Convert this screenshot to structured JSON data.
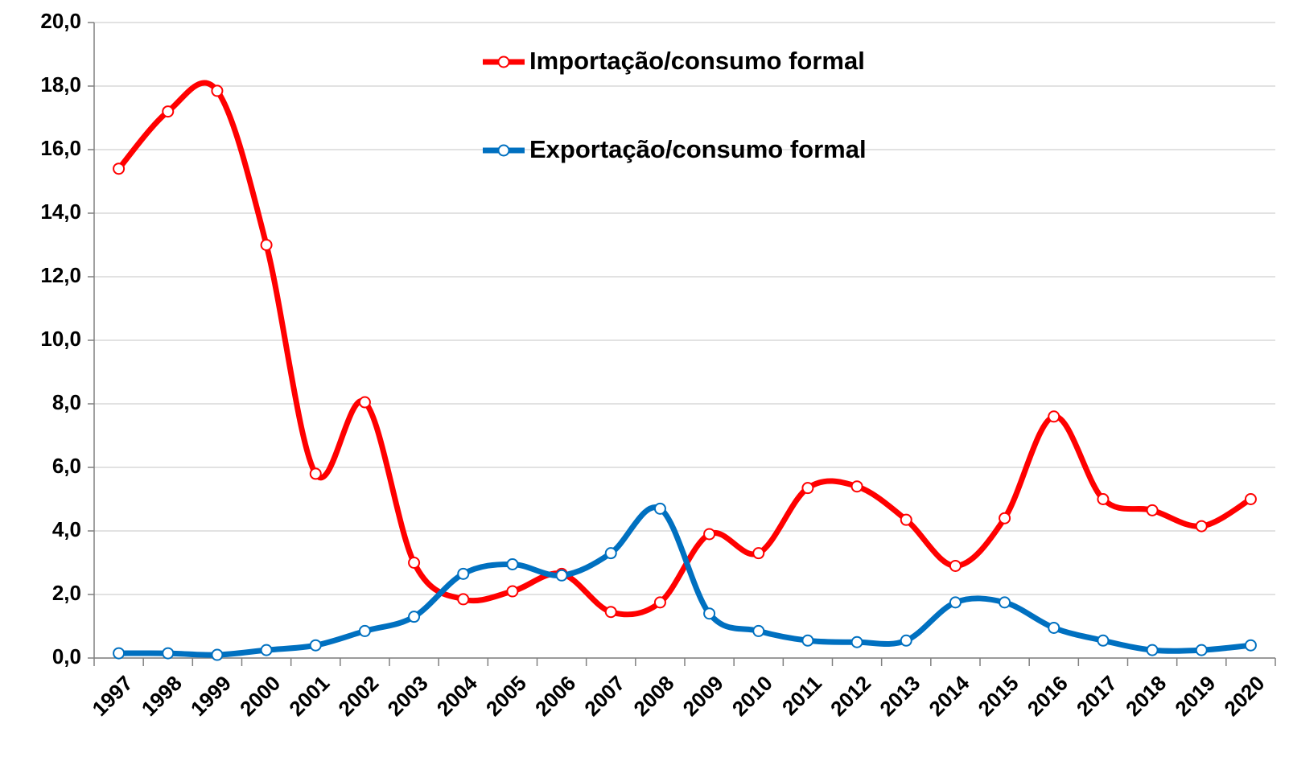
{
  "chart_data": {
    "type": "line",
    "categories": [
      "1997",
      "1998",
      "1999",
      "2000",
      "2001",
      "2002",
      "2003",
      "2004",
      "2005",
      "2006",
      "2007",
      "2008",
      "2009",
      "2010",
      "2011",
      "2012",
      "2013",
      "2014",
      "2015",
      "2016",
      "2017",
      "2018",
      "2019",
      "2020"
    ],
    "series": [
      {
        "name": "Importação/consumo formal",
        "color": "#ff0000",
        "values": [
          15.4,
          17.2,
          17.85,
          13.0,
          5.8,
          8.05,
          3.0,
          1.85,
          2.1,
          2.65,
          1.45,
          1.75,
          3.9,
          3.3,
          5.35,
          5.4,
          4.35,
          2.9,
          4.4,
          7.6,
          5.0,
          4.65,
          4.15,
          5.0
        ]
      },
      {
        "name": "Exportação/consumo formal",
        "color": "#0070c0",
        "values": [
          0.15,
          0.15,
          0.1,
          0.25,
          0.4,
          0.85,
          1.3,
          2.65,
          2.95,
          2.6,
          3.3,
          4.7,
          1.4,
          0.85,
          0.55,
          0.5,
          0.55,
          1.75,
          1.75,
          0.95,
          0.55,
          0.25,
          0.25,
          0.4
        ]
      }
    ],
    "ylim": [
      0,
      20
    ],
    "yticks": [
      {
        "value": 0,
        "label": "0,0"
      },
      {
        "value": 2,
        "label": "2,0"
      },
      {
        "value": 4,
        "label": "4,0"
      },
      {
        "value": 6,
        "label": "6,0"
      },
      {
        "value": 8,
        "label": "8,0"
      },
      {
        "value": 10,
        "label": "10,0"
      },
      {
        "value": 12,
        "label": "12,0"
      },
      {
        "value": 14,
        "label": "14,0"
      },
      {
        "value": 16,
        "label": "16,0"
      },
      {
        "value": 18,
        "label": "18,0"
      },
      {
        "value": 20,
        "label": "20,0"
      }
    ],
    "grid": true,
    "smooth": true,
    "legend": "top"
  }
}
